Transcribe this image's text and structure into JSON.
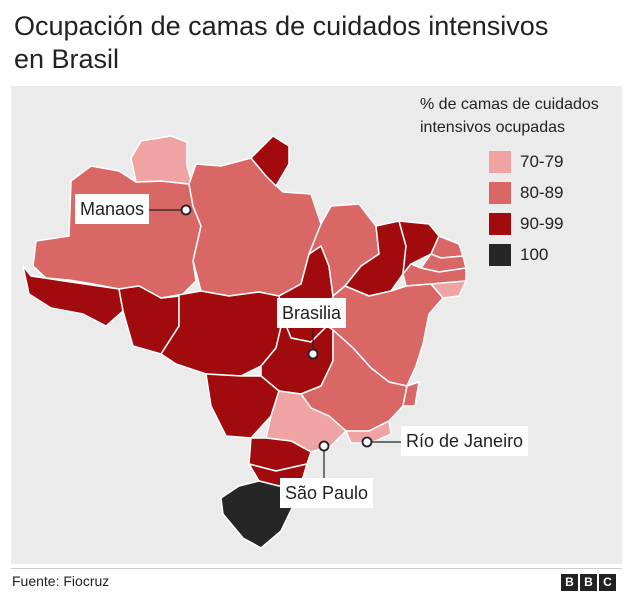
{
  "title": "Ocupación de camas de cuidados intensivos en Brasil",
  "legend": {
    "title": "% de camas de cuidados intensivos ocupadas",
    "items": [
      {
        "label": "70-79",
        "color": "#f0a3a3"
      },
      {
        "label": "80-89",
        "color": "#d86766"
      },
      {
        "label": "90-99",
        "color": "#a20b0d"
      },
      {
        "label": "100",
        "color": "#262626"
      }
    ]
  },
  "labels": {
    "manaos": "Manaos",
    "brasilia": "Brasilia",
    "rio": "Río de Janeiro",
    "sao_paulo": "São Paulo"
  },
  "footer": {
    "source": "Fuente: Fiocruz",
    "logo_letters": [
      "B",
      "B",
      "C"
    ]
  }
}
